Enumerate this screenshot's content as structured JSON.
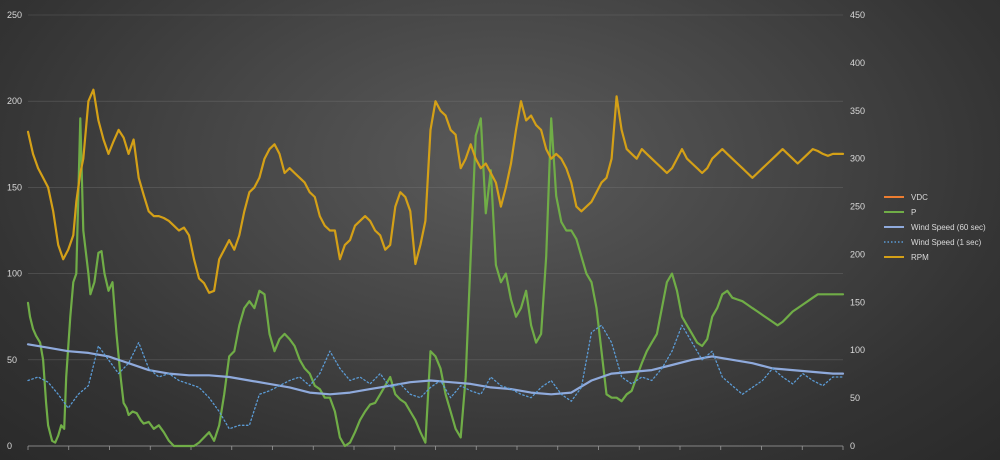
{
  "chart_data": {
    "type": "line",
    "title": "",
    "xlabel": "",
    "ylabel": "",
    "y_left": {
      "min": 0,
      "max": 250,
      "ticks": [
        0,
        50,
        100,
        150,
        200,
        250
      ]
    },
    "y_right": {
      "min": 0,
      "max": 450,
      "ticks": [
        0,
        50,
        100,
        150,
        200,
        250,
        300,
        350,
        400,
        450
      ]
    },
    "grid": true,
    "legend_position": "right",
    "series": [
      {
        "name": "VDC",
        "axis": "left",
        "color": "#ed7d31",
        "style": "solid",
        "x": [],
        "values": []
      },
      {
        "name": "P",
        "axis": "left",
        "color": "#70ad47",
        "style": "solid",
        "x": [
          0,
          2,
          5,
          8,
          12,
          15,
          18,
          20,
          24,
          27,
          30,
          33,
          36,
          38,
          42,
          45,
          48,
          52,
          55,
          60,
          62,
          66,
          70,
          73,
          76,
          80,
          84,
          88,
          92,
          95,
          98,
          100,
          104,
          108,
          112,
          115,
          120,
          125,
          130,
          135,
          140,
          145,
          150,
          155,
          160,
          165,
          170,
          175,
          180,
          185,
          190,
          195,
          200,
          205,
          210,
          215,
          220,
          225,
          230,
          235,
          240,
          245,
          250,
          255,
          260,
          265,
          270,
          275,
          280,
          285,
          290,
          295,
          300,
          305,
          310,
          315,
          320,
          325,
          330,
          335,
          340,
          345,
          350,
          355,
          360,
          365,
          370,
          375,
          380,
          385,
          390,
          395,
          400,
          405,
          410,
          415,
          420,
          425,
          430,
          435,
          440,
          445,
          450,
          455,
          460,
          465,
          470,
          475,
          480,
          485,
          490,
          495,
          500,
          505,
          510,
          515,
          520,
          525,
          530,
          535,
          540,
          545,
          550,
          555,
          560,
          565,
          570,
          575,
          580,
          585,
          590,
          595,
          600,
          605,
          610,
          615,
          620,
          625,
          630,
          635,
          640,
          645,
          650,
          655,
          660,
          665,
          670,
          675,
          680,
          685,
          690,
          695,
          700,
          705,
          710,
          715,
          720,
          725,
          730,
          735,
          740,
          745,
          750,
          755,
          760,
          765,
          770,
          775,
          780,
          785,
          790,
          795,
          800,
          805,
          810
        ],
        "values": [
          83,
          75,
          68,
          64,
          60,
          50,
          25,
          12,
          3,
          2,
          6,
          12,
          10,
          40,
          75,
          95,
          100,
          190,
          125,
          100,
          88,
          95,
          112,
          113,
          100,
          90,
          95,
          65,
          40,
          25,
          22,
          18,
          20,
          19,
          15,
          13,
          14,
          10,
          12,
          8,
          3,
          0,
          0,
          0,
          0,
          0,
          2,
          5,
          8,
          3,
          12,
          30,
          52,
          55,
          70,
          80,
          84,
          80,
          90,
          88,
          65,
          55,
          62,
          65,
          62,
          58,
          50,
          45,
          42,
          35,
          33,
          28,
          28,
          20,
          5,
          0,
          2,
          8,
          15,
          20,
          24,
          25,
          30,
          35,
          40,
          30,
          27,
          25,
          20,
          15,
          8,
          2,
          55,
          52,
          45,
          30,
          20,
          10,
          5,
          40,
          110,
          180,
          190,
          135,
          160,
          105,
          95,
          100,
          85,
          75,
          80,
          90,
          70,
          60,
          65,
          110,
          190,
          145,
          130,
          125,
          125,
          120,
          110,
          100,
          95,
          80,
          55,
          30,
          28,
          28,
          26,
          30,
          32,
          40,
          48,
          55,
          60,
          65,
          80,
          95,
          100,
          90,
          75,
          70,
          65,
          60,
          58,
          62,
          75,
          80,
          88,
          90,
          86,
          85,
          84,
          82,
          80,
          78,
          76,
          74,
          72,
          70,
          72,
          75,
          78,
          80,
          82,
          84,
          86,
          88,
          88,
          88,
          88,
          88,
          88
        ]
      },
      {
        "name": "Wind Speed (60 sec)",
        "axis": "left",
        "color": "#8faadc",
        "style": "solid",
        "x": [
          0,
          20,
          40,
          60,
          80,
          100,
          120,
          140,
          160,
          180,
          200,
          220,
          240,
          260,
          280,
          300,
          320,
          340,
          360,
          380,
          400,
          420,
          440,
          460,
          480,
          500,
          520,
          540,
          560,
          580,
          600,
          620,
          640,
          660,
          680,
          700,
          720,
          740,
          760,
          780,
          800,
          810
        ],
        "values": [
          59,
          57,
          55,
          54,
          52,
          48,
          44,
          42,
          41,
          41,
          40,
          38,
          36,
          34,
          31,
          30,
          31,
          33,
          35,
          37,
          38,
          37,
          36,
          34,
          33,
          31,
          30,
          31,
          38,
          42,
          43,
          44,
          47,
          50,
          52,
          50,
          48,
          45,
          44,
          43,
          42,
          42
        ]
      },
      {
        "name": "Wind Speed (1 sec)",
        "axis": "left",
        "color": "#5b9bd5",
        "style": "dotted",
        "x": [
          0,
          10,
          20,
          30,
          40,
          50,
          60,
          70,
          80,
          90,
          100,
          110,
          120,
          130,
          140,
          150,
          160,
          170,
          180,
          190,
          200,
          210,
          220,
          230,
          240,
          250,
          260,
          270,
          280,
          290,
          300,
          310,
          320,
          330,
          340,
          350,
          360,
          370,
          380,
          390,
          400,
          410,
          420,
          430,
          440,
          450,
          460,
          470,
          480,
          490,
          500,
          510,
          520,
          530,
          540,
          550,
          560,
          570,
          580,
          590,
          600,
          610,
          620,
          630,
          640,
          650,
          660,
          670,
          680,
          690,
          700,
          710,
          720,
          730,
          740,
          750,
          760,
          770,
          780,
          790,
          800,
          810
        ],
        "values": [
          38,
          40,
          37,
          30,
          22,
          30,
          35,
          58,
          50,
          42,
          48,
          60,
          45,
          40,
          42,
          38,
          36,
          34,
          28,
          20,
          10,
          12,
          12,
          30,
          32,
          35,
          38,
          40,
          35,
          42,
          55,
          45,
          38,
          40,
          36,
          42,
          34,
          36,
          30,
          28,
          34,
          38,
          28,
          35,
          32,
          30,
          40,
          35,
          33,
          30,
          28,
          34,
          38,
          30,
          26,
          34,
          66,
          70,
          60,
          40,
          36,
          40,
          38,
          45,
          55,
          70,
          60,
          50,
          55,
          40,
          35,
          30,
          34,
          38,
          45,
          40,
          36,
          42,
          38,
          35,
          40,
          40
        ]
      },
      {
        "name": "RPM",
        "axis": "right",
        "color": "#d4a017",
        "style": "solid",
        "x": [
          0,
          5,
          10,
          15,
          20,
          25,
          30,
          35,
          40,
          45,
          48,
          52,
          55,
          60,
          65,
          70,
          75,
          80,
          85,
          90,
          95,
          100,
          105,
          110,
          115,
          120,
          125,
          130,
          135,
          140,
          145,
          150,
          155,
          160,
          165,
          170,
          175,
          180,
          185,
          190,
          195,
          200,
          205,
          210,
          215,
          220,
          225,
          230,
          235,
          240,
          245,
          250,
          255,
          260,
          265,
          270,
          275,
          280,
          285,
          290,
          295,
          300,
          305,
          310,
          315,
          320,
          325,
          330,
          335,
          340,
          345,
          350,
          355,
          360,
          365,
          370,
          375,
          380,
          385,
          390,
          395,
          400,
          405,
          410,
          415,
          420,
          425,
          430,
          435,
          440,
          445,
          450,
          455,
          460,
          465,
          470,
          475,
          480,
          485,
          490,
          495,
          500,
          505,
          510,
          515,
          520,
          525,
          530,
          535,
          540,
          545,
          550,
          555,
          560,
          565,
          570,
          575,
          580,
          585,
          590,
          595,
          600,
          605,
          610,
          615,
          620,
          625,
          630,
          635,
          640,
          645,
          650,
          655,
          660,
          665,
          670,
          675,
          680,
          685,
          690,
          695,
          700,
          705,
          710,
          715,
          720,
          725,
          730,
          735,
          740,
          745,
          750,
          755,
          760,
          765,
          770,
          775,
          780,
          785,
          790,
          795,
          800,
          805,
          810
        ],
        "values": [
          328,
          305,
          290,
          280,
          270,
          245,
          210,
          195,
          205,
          220,
          255,
          285,
          300,
          360,
          372,
          340,
          320,
          305,
          318,
          330,
          322,
          305,
          320,
          280,
          262,
          245,
          240,
          240,
          238,
          235,
          230,
          225,
          228,
          220,
          195,
          175,
          170,
          160,
          162,
          195,
          205,
          215,
          205,
          220,
          245,
          265,
          270,
          280,
          300,
          310,
          315,
          305,
          285,
          290,
          285,
          280,
          275,
          265,
          260,
          240,
          230,
          225,
          225,
          195,
          210,
          215,
          230,
          235,
          240,
          235,
          225,
          220,
          205,
          210,
          250,
          265,
          260,
          245,
          190,
          210,
          235,
          330,
          360,
          350,
          345,
          330,
          325,
          290,
          300,
          315,
          300,
          290,
          295,
          285,
          275,
          250,
          270,
          295,
          330,
          360,
          340,
          345,
          335,
          330,
          310,
          300,
          305,
          300,
          290,
          275,
          250,
          245,
          250,
          255,
          265,
          275,
          280,
          300,
          365,
          330,
          310,
          305,
          300,
          310,
          305,
          300,
          295,
          290,
          285,
          290,
          300,
          310,
          300,
          295,
          290,
          285,
          290,
          300,
          305,
          310,
          305,
          300,
          295,
          290,
          285,
          280,
          285,
          290,
          295,
          300,
          305,
          310,
          305,
          300,
          295,
          300,
          305,
          310,
          308,
          305,
          303,
          305,
          305,
          305
        ]
      }
    ]
  }
}
